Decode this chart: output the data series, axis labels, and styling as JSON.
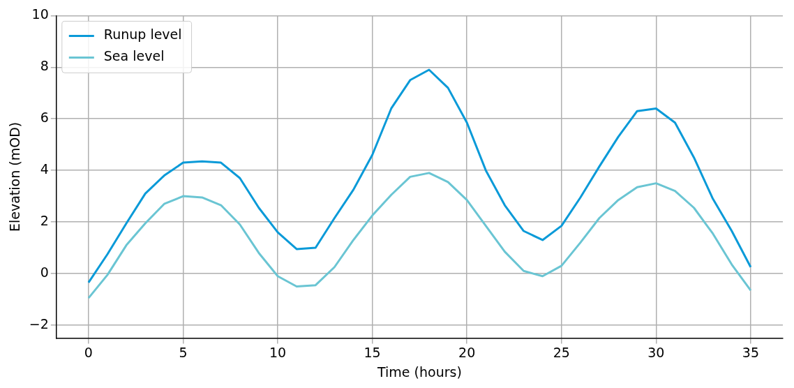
{
  "chart_data": {
    "type": "line",
    "xlabel": "Time (hours)",
    "ylabel": "Elevation (mOD)",
    "x": [
      0,
      1,
      2,
      3,
      4,
      5,
      6,
      7,
      8,
      9,
      10,
      11,
      12,
      13,
      14,
      15,
      16,
      17,
      18,
      19,
      20,
      21,
      22,
      23,
      24,
      25,
      26,
      27,
      28,
      29,
      30,
      31,
      32,
      33,
      34,
      35
    ],
    "series": [
      {
        "name": "Runup level",
        "color": "#0a9ad8",
        "values": [
          -0.35,
          0.75,
          1.95,
          3.1,
          3.8,
          4.3,
          4.35,
          4.3,
          3.7,
          2.55,
          1.6,
          0.95,
          1.0,
          2.15,
          3.25,
          4.6,
          6.4,
          7.5,
          7.9,
          7.2,
          5.85,
          4.0,
          2.65,
          1.65,
          1.3,
          1.85,
          2.95,
          4.15,
          5.3,
          6.3,
          6.4,
          5.85,
          4.5,
          2.9,
          1.65,
          0.25
        ]
      },
      {
        "name": "Sea level",
        "color": "#6ac5d3",
        "values": [
          -0.95,
          -0.05,
          1.1,
          1.95,
          2.7,
          3.0,
          2.95,
          2.65,
          1.9,
          0.8,
          -0.1,
          -0.5,
          -0.45,
          0.25,
          1.3,
          2.25,
          3.05,
          3.75,
          3.9,
          3.55,
          2.85,
          1.85,
          0.85,
          0.1,
          -0.1,
          0.3,
          1.2,
          2.15,
          2.85,
          3.35,
          3.5,
          3.2,
          2.55,
          1.55,
          0.35,
          -0.65
        ]
      }
    ],
    "xlim": [
      -1.7,
      36.7
    ],
    "xticks": [
      0,
      5,
      10,
      15,
      20,
      25,
      30,
      35
    ],
    "ylim": [
      -2.5,
      10
    ],
    "yticks": [
      {
        "value": -2,
        "label": "−2"
      },
      0,
      2,
      4,
      6,
      8,
      10
    ],
    "grid": true,
    "legend": "top left",
    "marker": "none",
    "line_style": "solid"
  }
}
